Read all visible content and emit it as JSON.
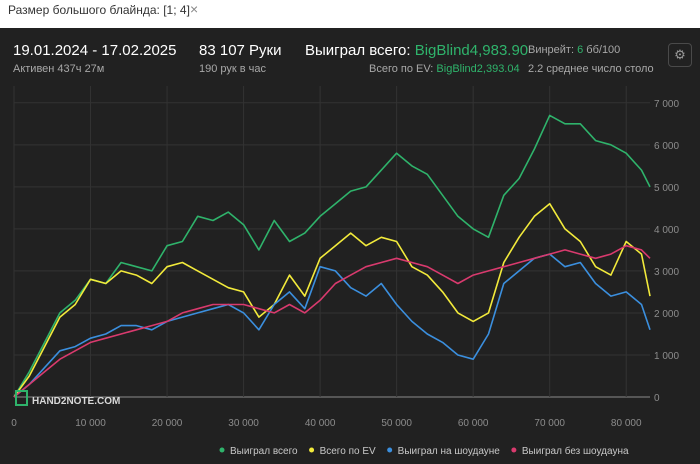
{
  "filter": {
    "label": "Размер большого блайнда: [1; 4]",
    "close": "×"
  },
  "stats": {
    "period": "19.01.2024 - 17.02.2025",
    "active": "Активен 437ч 27м",
    "hands": "83 107 Руки",
    "hands_per_hour": "190 рук в час",
    "won_total_label": "Выиграл всего:",
    "won_total_value": "BigBlind4,983.90",
    "ev_label": "Всего по EV:",
    "ev_value": "BigBlind2,393.04",
    "winrate_label": "Винрейт:",
    "winrate_value": "6",
    "winrate_unit": "бб/100",
    "tables_label": "2.2 среднее число столо"
  },
  "logo": {
    "text": "HAND2NOTE.COM"
  },
  "colors": {
    "panel": "#212121",
    "green": "#2fb36b",
    "yellow": "#f2ea3b",
    "blue": "#3b8fde",
    "pink": "#d93a6e",
    "grid": "#333333"
  },
  "icons": {
    "settings": "gear-icon"
  },
  "chart_data": {
    "type": "line",
    "xlim": [
      0,
      83107
    ],
    "ylim": [
      0,
      7400
    ],
    "x_ticks": [
      0,
      10000,
      20000,
      30000,
      40000,
      50000,
      60000,
      70000,
      80000
    ],
    "x_tick_labels": [
      "0",
      "10 000",
      "20 000",
      "30 000",
      "40 000",
      "50 000",
      "60 000",
      "70 000",
      "80 000"
    ],
    "y_ticks": [
      0,
      1000,
      2000,
      3000,
      4000,
      5000,
      6000,
      7000
    ],
    "y_tick_labels": [
      "0",
      "1 000",
      "2 000",
      "3 000",
      "4 000",
      "5 000",
      "6 000",
      "7 000"
    ],
    "grid": true,
    "legend_position": "bottom-right",
    "x": [
      0,
      2000,
      4000,
      6000,
      8000,
      10000,
      12000,
      14000,
      16000,
      18000,
      20000,
      22000,
      24000,
      26000,
      28000,
      30000,
      32000,
      34000,
      36000,
      38000,
      40000,
      42000,
      44000,
      46000,
      48000,
      50000,
      52000,
      54000,
      56000,
      58000,
      60000,
      62000,
      64000,
      66000,
      68000,
      70000,
      72000,
      74000,
      76000,
      78000,
      80000,
      82000,
      83107
    ],
    "series": [
      {
        "name": "Выиграл всего",
        "color": "#2fb36b",
        "values": [
          0,
          600,
          1300,
          2000,
          2300,
          2800,
          2700,
          3200,
          3100,
          3000,
          3600,
          3700,
          4300,
          4200,
          4400,
          4100,
          3500,
          4200,
          3700,
          3900,
          4300,
          4600,
          4900,
          5000,
          5400,
          5800,
          5500,
          5300,
          4800,
          4300,
          4000,
          3800,
          4800,
          5200,
          5900,
          6700,
          6500,
          6500,
          6100,
          6000,
          5800,
          5400,
          5000
        ]
      },
      {
        "name": "Всего по EV",
        "color": "#f2ea3b",
        "values": [
          0,
          500,
          1200,
          1900,
          2200,
          2800,
          2700,
          3000,
          2900,
          2700,
          3100,
          3200,
          3000,
          2800,
          2600,
          2500,
          1900,
          2200,
          2900,
          2400,
          3300,
          3600,
          3900,
          3600,
          3800,
          3700,
          3100,
          2900,
          2500,
          2000,
          1800,
          2000,
          3200,
          3800,
          4300,
          4600,
          4000,
          3700,
          3100,
          2900,
          3700,
          3400,
          2400
        ]
      },
      {
        "name": "Выиграл на шоудауне",
        "color": "#3b8fde",
        "values": [
          0,
          300,
          700,
          1100,
          1200,
          1400,
          1500,
          1700,
          1700,
          1600,
          1800,
          1900,
          2000,
          2100,
          2200,
          2000,
          1600,
          2200,
          2500,
          2100,
          3100,
          3000,
          2600,
          2400,
          2700,
          2200,
          1800,
          1500,
          1300,
          1000,
          900,
          1500,
          2700,
          3000,
          3300,
          3400,
          3100,
          3200,
          2700,
          2400,
          2500,
          2200,
          1600
        ]
      },
      {
        "name": "Выиграл без шоудауна",
        "color": "#d93a6e",
        "values": [
          0,
          300,
          600,
          900,
          1100,
          1300,
          1400,
          1500,
          1600,
          1700,
          1800,
          2000,
          2100,
          2200,
          2200,
          2200,
          2100,
          2000,
          2200,
          2000,
          2300,
          2700,
          2900,
          3100,
          3200,
          3300,
          3200,
          3100,
          2900,
          2700,
          2900,
          3000,
          3100,
          3200,
          3300,
          3400,
          3500,
          3400,
          3300,
          3400,
          3600,
          3500,
          3300
        ]
      }
    ]
  }
}
